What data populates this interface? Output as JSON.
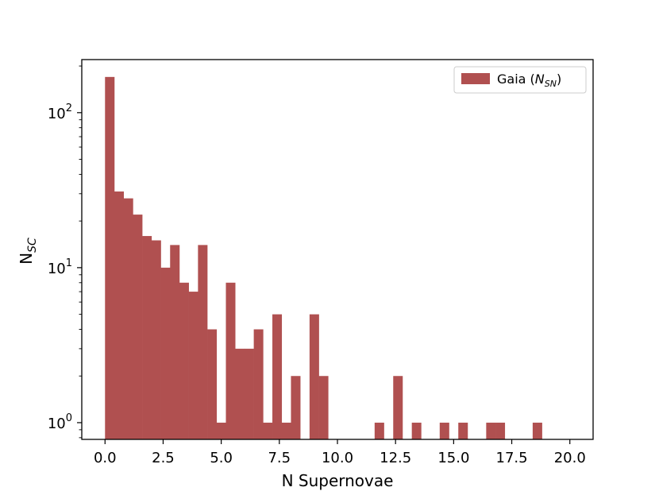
{
  "chart_data": {
    "type": "bar",
    "title": "",
    "xlabel": "N Supernovae",
    "ylabel": {
      "main": "N",
      "sub": "SC"
    },
    "yscale": "log",
    "xlim": [
      -1.0,
      21.0
    ],
    "ylim": [
      0.78,
      220
    ],
    "bin_width": 0.4,
    "bins": [
      {
        "x0": 0.0,
        "value": 170
      },
      {
        "x0": 0.4,
        "value": 31
      },
      {
        "x0": 0.8,
        "value": 28
      },
      {
        "x0": 1.2,
        "value": 22
      },
      {
        "x0": 1.6,
        "value": 16
      },
      {
        "x0": 2.0,
        "value": 15
      },
      {
        "x0": 2.4,
        "value": 10
      },
      {
        "x0": 2.8,
        "value": 14
      },
      {
        "x0": 3.2,
        "value": 8
      },
      {
        "x0": 3.6,
        "value": 7
      },
      {
        "x0": 4.0,
        "value": 14
      },
      {
        "x0": 4.4,
        "value": 4
      },
      {
        "x0": 4.8,
        "value": 1
      },
      {
        "x0": 5.2,
        "value": 8
      },
      {
        "x0": 5.6,
        "value": 3
      },
      {
        "x0": 6.0,
        "value": 3
      },
      {
        "x0": 6.4,
        "value": 4
      },
      {
        "x0": 6.8,
        "value": 1
      },
      {
        "x0": 7.2,
        "value": 5
      },
      {
        "x0": 7.6,
        "value": 1
      },
      {
        "x0": 8.0,
        "value": 2
      },
      {
        "x0": 8.8,
        "value": 5
      },
      {
        "x0": 9.2,
        "value": 2
      },
      {
        "x0": 11.6,
        "value": 1
      },
      {
        "x0": 12.4,
        "value": 2
      },
      {
        "x0": 13.2,
        "value": 1
      },
      {
        "x0": 14.4,
        "value": 1
      },
      {
        "x0": 15.2,
        "value": 1
      },
      {
        "x0": 16.4,
        "value": 1
      },
      {
        "x0": 16.8,
        "value": 1
      },
      {
        "x0": 18.4,
        "value": 1
      }
    ],
    "xticks": [
      0.0,
      2.5,
      5.0,
      7.5,
      10.0,
      12.5,
      15.0,
      17.5,
      20.0
    ],
    "xtick_labels": [
      "0.0",
      "2.5",
      "5.0",
      "7.5",
      "10.0",
      "12.5",
      "15.0",
      "17.5",
      "20.0"
    ],
    "yticks": [
      {
        "value": 1,
        "base": "10",
        "exp": "0"
      },
      {
        "value": 10,
        "base": "10",
        "exp": "1"
      },
      {
        "value": 100,
        "base": "10",
        "exp": "2"
      }
    ],
    "legend": {
      "position": "top-right",
      "label": {
        "prefix": "Gaia (",
        "var": "N",
        "sub": "SN",
        "suffix": ")"
      }
    },
    "grid": false,
    "color": "#b05050"
  }
}
